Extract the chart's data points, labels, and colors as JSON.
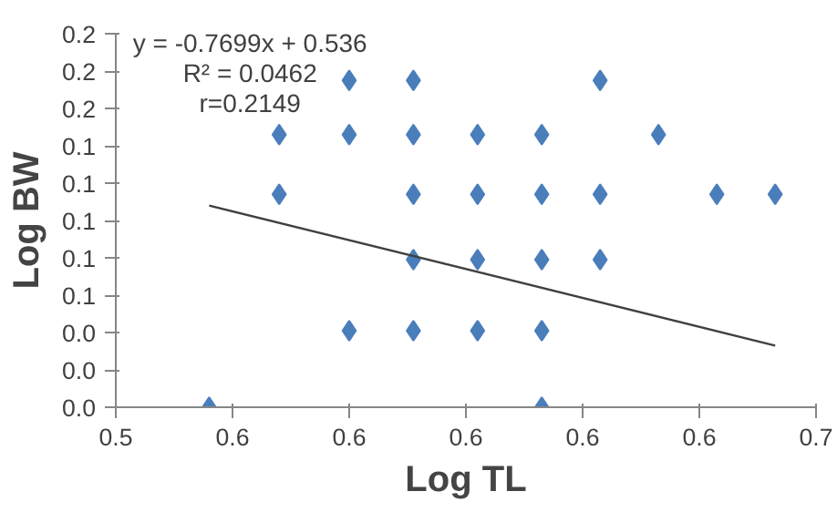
{
  "chart_data": {
    "type": "scatter",
    "xlabel": "Log TL",
    "ylabel": "Log BW",
    "xlim": [
      0.54,
      0.66
    ],
    "ylim": [
      0,
      0.2
    ],
    "xticks": [
      {
        "value": 0.54,
        "label": "0.5"
      },
      {
        "value": 0.56,
        "label": "0.6"
      },
      {
        "value": 0.58,
        "label": "0.6"
      },
      {
        "value": 0.6,
        "label": "0.6"
      },
      {
        "value": 0.62,
        "label": "0.6"
      },
      {
        "value": 0.64,
        "label": "0.6"
      },
      {
        "value": 0.66,
        "label": "0.7"
      }
    ],
    "yticks": [
      {
        "value": 0,
        "label": "0.0"
      },
      {
        "value": 0.02,
        "label": "0.0"
      },
      {
        "value": 0.04,
        "label": "0.0"
      },
      {
        "value": 0.06,
        "label": "0.1"
      },
      {
        "value": 0.08,
        "label": "0.1"
      },
      {
        "value": 0.1,
        "label": "0.1"
      },
      {
        "value": 0.12,
        "label": "0.1"
      },
      {
        "value": 0.14,
        "label": "0.1"
      },
      {
        "value": 0.16,
        "label": "0.2"
      },
      {
        "value": 0.18,
        "label": "0.2"
      },
      {
        "value": 0.2,
        "label": "0.2"
      }
    ],
    "grid": false,
    "marker": "diamond",
    "series": [
      {
        "color": "#4a7ebb",
        "x": [
          0.58,
          0.591,
          0.623,
          0.568,
          0.58,
          0.591,
          0.602,
          0.613,
          0.633,
          0.568,
          0.591,
          0.602,
          0.613,
          0.623,
          0.643,
          0.653,
          0.591,
          0.602,
          0.613,
          0.623,
          0.58,
          0.591,
          0.602,
          0.613,
          0.556,
          0.613
        ],
        "values": [
          0.175,
          0.175,
          0.175,
          0.146,
          0.146,
          0.146,
          0.146,
          0.146,
          0.146,
          0.114,
          0.114,
          0.114,
          0.114,
          0.114,
          0.114,
          0.114,
          0.079,
          0.079,
          0.079,
          0.079,
          0.041,
          0.041,
          0.041,
          0.041,
          0,
          0
        ]
      },
      {
        "type": "line",
        "marker": "none",
        "color": "#404040",
        "x": [
          0.556,
          0.653
        ],
        "values": [
          0.108,
          0.033
        ]
      }
    ],
    "annotations": [
      "y = -0.7699x + 0.536",
      "R² = 0.0462",
      "r=0.2149"
    ]
  }
}
